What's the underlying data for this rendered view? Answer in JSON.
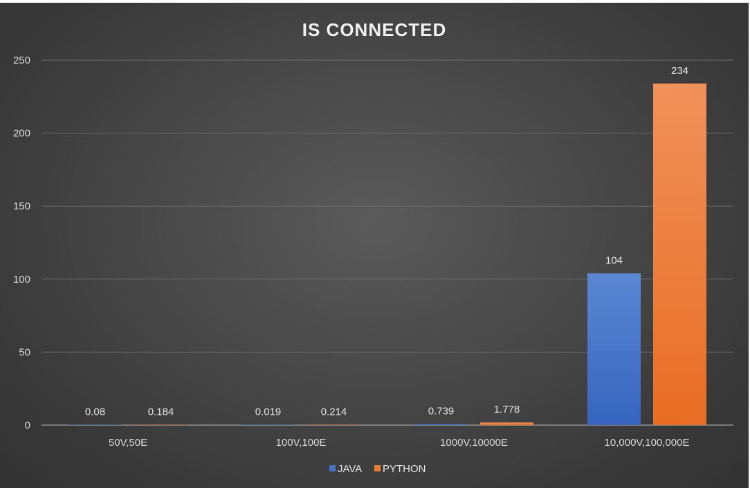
{
  "chart_data": {
    "type": "bar",
    "title": "IS CONNECTED",
    "xlabel": "",
    "ylabel": "",
    "categories": [
      "50V,50E",
      "100V,100E",
      "1000V,10000E",
      "10,000V,100,000E"
    ],
    "series": [
      {
        "name": "JAVA",
        "color": "#4472c4",
        "values": [
          0.08,
          0.019,
          0.739,
          104
        ],
        "labels": [
          "0.08",
          "0.019",
          "0.739",
          "104"
        ]
      },
      {
        "name": "PYTHON",
        "color": "#ed7d31",
        "values": [
          0.184,
          0.214,
          1.778,
          234
        ],
        "labels": [
          "0.184",
          "0.214",
          "1.778",
          "234"
        ]
      }
    ],
    "ylim": [
      0,
      250
    ],
    "yticks": [
      0,
      50,
      100,
      150,
      200,
      250
    ],
    "grid": true,
    "legend": "bottom"
  }
}
